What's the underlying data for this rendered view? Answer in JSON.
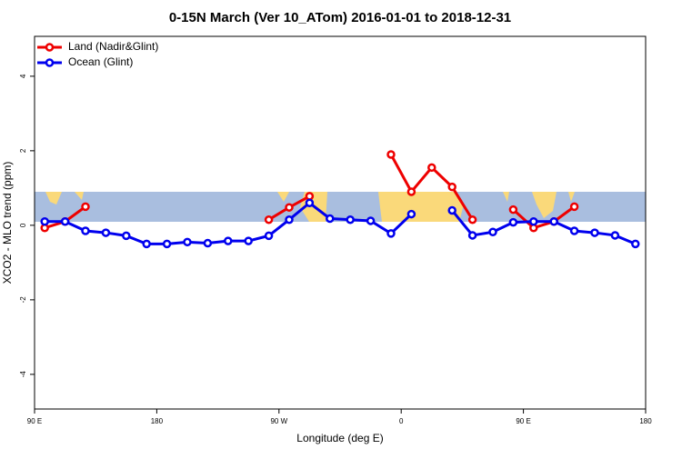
{
  "chart_data": {
    "type": "line",
    "title": "0-15N March (Ver 10_ATom)   2016-01-01 to 2018-12-31",
    "x_label": "Longitude (deg E)",
    "y_label": "XCO2 - MLO trend (ppm)",
    "x": [
      97.5,
      112.5,
      127.5,
      142.5,
      157.5,
      172.5,
      187.5,
      202.5,
      217.5,
      232.5,
      247.5,
      262.5,
      277.5,
      292.5,
      307.5,
      322.5,
      337.5,
      352.5,
      367.5,
      382.5,
      397.5,
      412.5,
      427.5,
      442.5,
      457.5,
      472.5,
      487.5,
      502.5,
      517.5,
      532.5
    ],
    "series": [
      {
        "name": "Land (Nadir&Glint)",
        "color": "#ee0000",
        "values": [
          -0.07,
          0.1,
          0.5,
          null,
          null,
          null,
          null,
          null,
          null,
          null,
          null,
          0.15,
          0.48,
          0.78,
          null,
          null,
          null,
          1.9,
          0.9,
          1.55,
          1.03,
          0.15,
          null,
          0.42,
          -0.07,
          0.1,
          0.5,
          null,
          null,
          null
        ]
      },
      {
        "name": "Ocean (Glint)",
        "color": "#0000ee",
        "values": [
          0.1,
          0.1,
          -0.15,
          -0.2,
          -0.28,
          -0.5,
          -0.5,
          -0.45,
          -0.48,
          -0.42,
          -0.42,
          -0.28,
          0.15,
          0.6,
          0.18,
          0.15,
          0.12,
          -0.22,
          0.3,
          null,
          0.4,
          -0.27,
          -0.18,
          0.08,
          0.1,
          0.1,
          -0.15,
          -0.2,
          -0.27,
          -0.5
        ]
      }
    ],
    "xlim": [
      90,
      540
    ],
    "ylim": [
      -4.93,
      5.07
    ],
    "xticks": [
      {
        "value": 90,
        "label": "90 E"
      },
      {
        "value": 180,
        "label": "180"
      },
      {
        "value": 270,
        "label": "90 W"
      },
      {
        "value": 360,
        "label": "0"
      },
      {
        "value": 450,
        "label": "90 E"
      },
      {
        "value": 540,
        "label": "180"
      }
    ],
    "yticks": [
      -4,
      -2,
      0,
      2,
      4
    ],
    "legend": "top-left"
  }
}
